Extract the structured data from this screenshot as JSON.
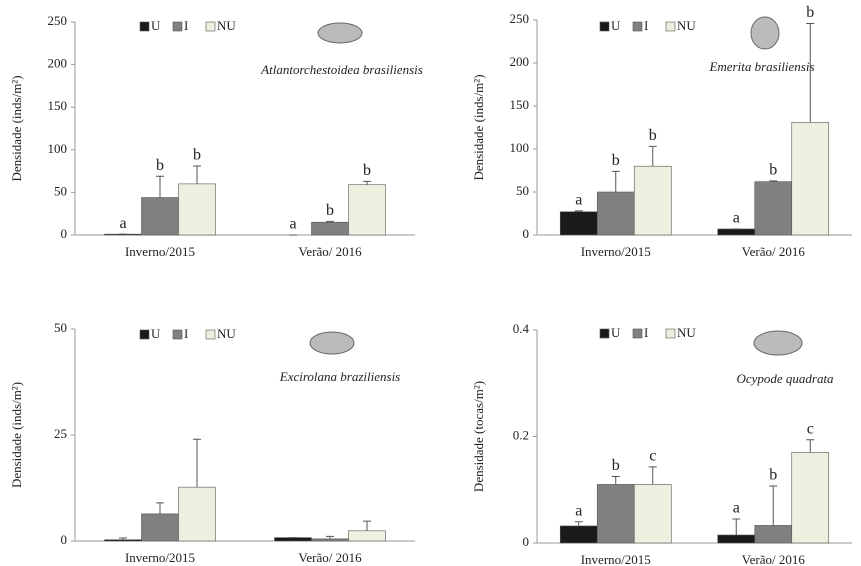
{
  "chart_data": [
    {
      "type": "bar",
      "ylabel": "Densidade (inds/m²)",
      "species": "Atlantorchestoidea brasiliensis",
      "categories": [
        "Inverno/2015",
        "Verão/ 2016"
      ],
      "ylim": [
        0,
        250
      ],
      "yticks": [
        0,
        50,
        100,
        150,
        200,
        250
      ],
      "series": [
        {
          "name": "U",
          "color": "#1a1a1a",
          "values": [
            1,
            0
          ],
          "errors": [
            0,
            0
          ],
          "letters": [
            "a",
            "a"
          ]
        },
        {
          "name": "I",
          "color": "#808080",
          "values": [
            44,
            15
          ],
          "errors": [
            25,
            1
          ],
          "letters": [
            "b",
            "b"
          ]
        },
        {
          "name": "NU",
          "color": "#efefdf",
          "values": [
            60,
            59
          ],
          "errors": [
            21,
            4
          ],
          "letters": [
            "b",
            "b"
          ]
        }
      ]
    },
    {
      "type": "bar",
      "ylabel": "Densidade (inds/m²)",
      "species": "Emerita brasiliensis",
      "categories": [
        "Inverno/2015",
        "Verão/ 2016"
      ],
      "ylim": [
        0,
        250
      ],
      "yticks": [
        0,
        50,
        100,
        150,
        200,
        250
      ],
      "series": [
        {
          "name": "U",
          "color": "#1a1a1a",
          "values": [
            27,
            7
          ],
          "errors": [
            1,
            0
          ],
          "letters": [
            "a",
            "a"
          ]
        },
        {
          "name": "I",
          "color": "#808080",
          "values": [
            50,
            62
          ],
          "errors": [
            24,
            1
          ],
          "letters": [
            "b",
            "b"
          ]
        },
        {
          "name": "NU",
          "color": "#efefdf",
          "values": [
            80,
            131
          ],
          "errors": [
            23,
            115
          ],
          "letters": [
            "b",
            "b"
          ]
        }
      ]
    },
    {
      "type": "bar",
      "ylabel": "Densidade (inds/m²)",
      "species": "Excirolana braziliensis",
      "categories": [
        "Inverno/2015",
        "Verão/ 2016"
      ],
      "ylim": [
        0,
        50
      ],
      "yticks": [
        0,
        25,
        50
      ],
      "series": [
        {
          "name": "U",
          "color": "#1a1a1a",
          "values": [
            0.3,
            0.8
          ],
          "errors": [
            0.4,
            0
          ]
        },
        {
          "name": "I",
          "color": "#808080",
          "values": [
            6.4,
            0.5
          ],
          "errors": [
            2.6,
            0.6
          ]
        },
        {
          "name": "NU",
          "color": "#efefdf",
          "values": [
            12.7,
            2.4
          ],
          "errors": [
            11.3,
            2.3
          ]
        }
      ]
    },
    {
      "type": "bar",
      "ylabel": "Densidade (tocas/m²)",
      "species": "Ocypode quadrata",
      "categories": [
        "Inverno/2015",
        "Verão/ 2016"
      ],
      "ylim": [
        0,
        0.4
      ],
      "yticks": [
        0,
        0.2,
        0.4
      ],
      "series": [
        {
          "name": "U",
          "color": "#1a1a1a",
          "values": [
            0.032,
            0.015
          ],
          "errors": [
            0.008,
            0.03
          ],
          "letters": [
            "a",
            "a"
          ]
        },
        {
          "name": "I",
          "color": "#808080",
          "values": [
            0.11,
            0.033
          ],
          "errors": [
            0.015,
            0.074
          ],
          "letters": [
            "b",
            "b"
          ]
        },
        {
          "name": "NU",
          "color": "#efefdf",
          "values": [
            0.11,
            0.17
          ],
          "errors": [
            0.033,
            0.024
          ],
          "letters": [
            "c",
            "c"
          ]
        }
      ]
    }
  ]
}
